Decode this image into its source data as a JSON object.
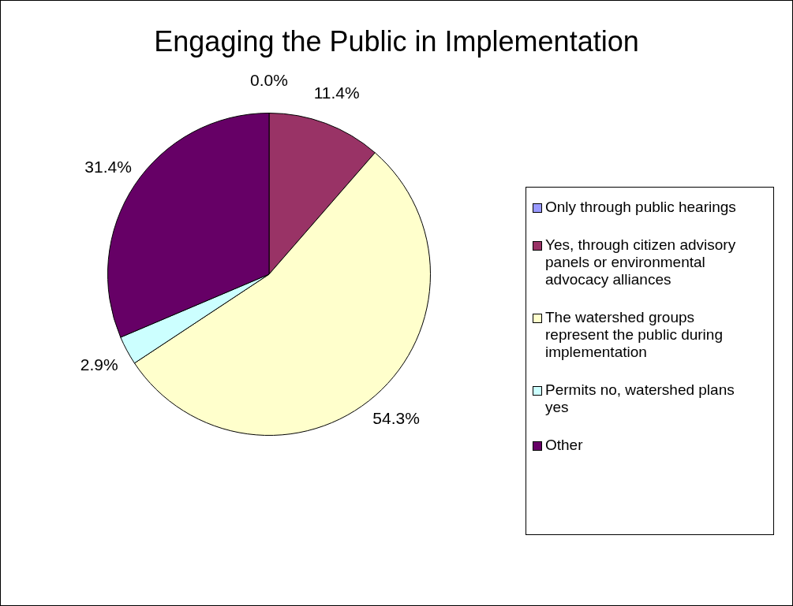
{
  "chart_data": {
    "type": "pie",
    "title": "Engaging the Public in Implementation",
    "categories": [
      "Only through public hearings",
      "Yes, through citizen advisory panels or environmental advocacy alliances",
      "The watershed groups represent the public during implementation",
      "Permits no, watershed plans yes",
      "Other"
    ],
    "values": [
      0.0,
      11.4,
      54.3,
      2.9,
      31.4
    ],
    "value_labels": [
      "0.0%",
      "11.4%",
      "54.3%",
      "2.9%",
      "31.4%"
    ],
    "colors": [
      "#9999ff",
      "#993366",
      "#ffffcc",
      "#ccffff",
      "#660066"
    ],
    "legend": "right"
  }
}
